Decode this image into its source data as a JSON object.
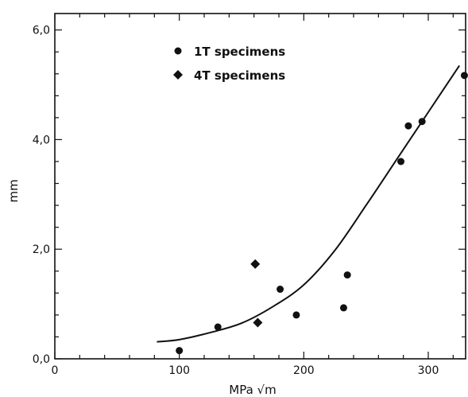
{
  "chart_data": {
    "type": "scatter",
    "title": "",
    "xlabel": "MPa √m",
    "ylabel": "mm",
    "xlim": [
      0,
      330
    ],
    "ylim": [
      0,
      6.3
    ],
    "x_ticks": [
      {
        "value": 0,
        "label": "0"
      },
      {
        "value": 100,
        "label": "100"
      },
      {
        "value": 200,
        "label": "200"
      },
      {
        "value": 300,
        "label": "300"
      }
    ],
    "y_ticks": [
      {
        "value": 0,
        "label": "0,0"
      },
      {
        "value": 2,
        "label": "2,0"
      },
      {
        "value": 4,
        "label": "4,0"
      },
      {
        "value": 6,
        "label": "6,0"
      }
    ],
    "grid": false,
    "legend_position": "top-left",
    "series": [
      {
        "name": "1T specimens",
        "marker": "circle",
        "points": [
          {
            "x": 100,
            "y": 0.15
          },
          {
            "x": 131,
            "y": 0.58
          },
          {
            "x": 181,
            "y": 1.27
          },
          {
            "x": 194,
            "y": 0.8
          },
          {
            "x": 232,
            "y": 0.93
          },
          {
            "x": 235,
            "y": 1.53
          },
          {
            "x": 278,
            "y": 3.6
          },
          {
            "x": 284,
            "y": 4.25
          },
          {
            "x": 295,
            "y": 4.33
          },
          {
            "x": 329,
            "y": 5.17
          }
        ]
      },
      {
        "name": "4T specimens",
        "marker": "diamond",
        "points": [
          {
            "x": 161,
            "y": 1.73
          },
          {
            "x": 163,
            "y": 0.66
          }
        ]
      }
    ],
    "fit_curve": [
      {
        "x": 82,
        "y": 0.31
      },
      {
        "x": 100,
        "y": 0.35
      },
      {
        "x": 125,
        "y": 0.48
      },
      {
        "x": 150,
        "y": 0.65
      },
      {
        "x": 175,
        "y": 0.95
      },
      {
        "x": 200,
        "y": 1.35
      },
      {
        "x": 225,
        "y": 1.98
      },
      {
        "x": 250,
        "y": 2.8
      },
      {
        "x": 275,
        "y": 3.65
      },
      {
        "x": 300,
        "y": 4.5
      },
      {
        "x": 325,
        "y": 5.35
      }
    ]
  }
}
